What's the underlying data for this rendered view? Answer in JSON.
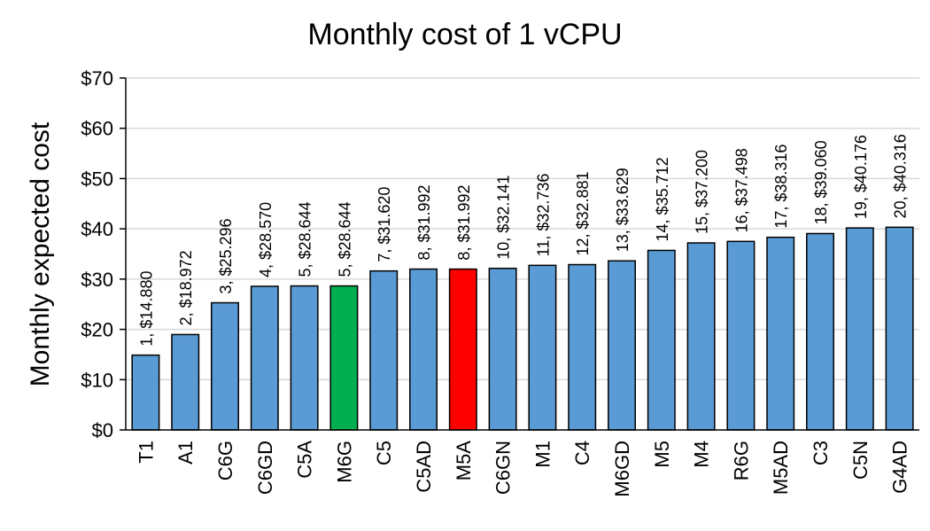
{
  "chart_data": {
    "type": "bar",
    "title": "Monthly cost of 1 vCPU",
    "xlabel": "",
    "ylabel": "Monthly expected  cost",
    "ylim": [
      0,
      70
    ],
    "yticks": [
      "$0",
      "$10",
      "$20",
      "$30",
      "$40",
      "$50",
      "$60",
      "$70"
    ],
    "grid": true,
    "legend": "none",
    "categories": [
      "T1",
      "A1",
      "C6G",
      "C6GD",
      "C5A",
      "M6G",
      "C5",
      "C5AD",
      "M5A",
      "C6GN",
      "M1",
      "C4",
      "M6GD",
      "M5",
      "M4",
      "R6G",
      "M5AD",
      "C3",
      "C5N",
      "G4AD"
    ],
    "values": [
      14.88,
      18.972,
      25.296,
      28.57,
      28.644,
      28.644,
      31.62,
      31.992,
      31.992,
      32.141,
      32.736,
      32.881,
      33.629,
      35.712,
      37.2,
      37.498,
      38.316,
      39.06,
      40.176,
      40.316
    ],
    "data_labels": [
      "1,  $14.880",
      "2,  $18.972",
      "3,  $25.296",
      "4,  $28.570",
      "5,  $28.644",
      "5,  $28.644",
      "7,  $31.620",
      "8,  $31.992",
      "8,  $31.992",
      "10,  $32.141",
      "11,  $32.736",
      "12,  $32.881",
      "13,  $33.629",
      "14,  $35.712",
      "15,  $37.200",
      "16,  $37.498",
      "17,  $38.316",
      "18,  $39.060",
      "19,  $40.176",
      "20,  $40.316"
    ],
    "colors": {
      "default": "#5B9BD5",
      "highlight_green": "#00B050",
      "highlight_red": "#FF0000",
      "bar_outline": "#000000",
      "grid": "#D9D9D9"
    },
    "bar_colors": [
      "#5B9BD5",
      "#5B9BD5",
      "#5B9BD5",
      "#5B9BD5",
      "#5B9BD5",
      "#00B050",
      "#5B9BD5",
      "#5B9BD5",
      "#FF0000",
      "#5B9BD5",
      "#5B9BD5",
      "#5B9BD5",
      "#5B9BD5",
      "#5B9BD5",
      "#5B9BD5",
      "#5B9BD5",
      "#5B9BD5",
      "#5B9BD5",
      "#5B9BD5",
      "#5B9BD5"
    ]
  }
}
